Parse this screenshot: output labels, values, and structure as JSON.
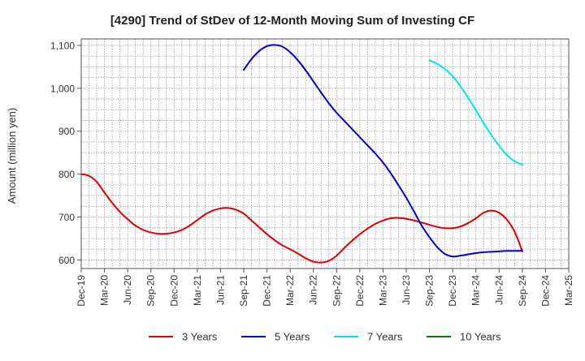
{
  "chart_data": {
    "type": "line",
    "title": "[4290]  Trend of StDev of 12-Month Moving Sum of Investing CF",
    "ylabel": "Amount (million yen)",
    "xlabel": "",
    "ylim": [
      580,
      1115
    ],
    "yticks": [
      600,
      700,
      800,
      900,
      1000,
      1100
    ],
    "ytick_labels": [
      "600",
      "700",
      "800",
      "900",
      "1,000",
      "1,100"
    ],
    "x_range": [
      "Dec-19",
      "Mar-25"
    ],
    "xtick_labels": [
      "Dec-19",
      "Mar-20",
      "Jun-20",
      "Sep-20",
      "Dec-20",
      "Mar-21",
      "Jun-21",
      "Sep-21",
      "Dec-21",
      "Mar-22",
      "Jun-22",
      "Sep-22",
      "Dec-22",
      "Mar-23",
      "Jun-23",
      "Sep-23",
      "Dec-23",
      "Mar-24",
      "Jun-24",
      "Sep-24",
      "Dec-24",
      "Mar-25"
    ],
    "grid": true,
    "legend_position": "bottom",
    "series": [
      {
        "name": "3 Years",
        "color": "#dd0000",
        "x": [
          "Dec-19",
          "Jan-20",
          "Feb-20",
          "Mar-20",
          "Apr-20",
          "May-20",
          "Jun-20",
          "Jul-20",
          "Aug-20",
          "Sep-20",
          "Oct-20",
          "Nov-20",
          "Dec-20",
          "Jan-21",
          "Feb-21",
          "Mar-21",
          "Apr-21",
          "May-21",
          "Jun-21",
          "Jul-21",
          "Aug-21",
          "Sep-21",
          "Oct-21",
          "Nov-21",
          "Dec-21",
          "Jan-22",
          "Feb-22",
          "Mar-22",
          "Apr-22",
          "May-22",
          "Jun-22",
          "Jul-22",
          "Aug-22",
          "Sep-22",
          "Oct-22",
          "Nov-22",
          "Dec-22",
          "Jan-23",
          "Feb-23",
          "Mar-23",
          "Apr-23",
          "May-23",
          "Jun-23",
          "Jul-23",
          "Aug-23",
          "Sep-23",
          "Oct-23",
          "Nov-23",
          "Dec-23",
          "Jan-24",
          "Feb-24",
          "Mar-24",
          "Apr-24",
          "May-24",
          "Jun-24",
          "Jul-24",
          "Aug-24",
          "Sep-24"
        ],
        "values": [
          800,
          796,
          782,
          757,
          733,
          712,
          695,
          680,
          670,
          664,
          661,
          661,
          664,
          670,
          680,
          693,
          706,
          715,
          720,
          721,
          717,
          708,
          692,
          676,
          660,
          646,
          634,
          625,
          615,
          604,
          596,
          594,
          598,
          610,
          628,
          645,
          660,
          673,
          684,
          692,
          697,
          698,
          696,
          692,
          687,
          682,
          677,
          674,
          674,
          678,
          686,
          697,
          710,
          715,
          710,
          694,
          666,
          620
        ]
      },
      {
        "name": "5 Years",
        "color": "#0000cc",
        "x": [
          "Sep-21",
          "Oct-21",
          "Nov-21",
          "Dec-21",
          "Jan-22",
          "Feb-22",
          "Mar-22",
          "Apr-22",
          "May-22",
          "Jun-22",
          "Jul-22",
          "Aug-22",
          "Sep-22",
          "Oct-22",
          "Nov-22",
          "Dec-22",
          "Jan-23",
          "Feb-23",
          "Mar-23",
          "Apr-23",
          "May-23",
          "Jun-23",
          "Jul-23",
          "Aug-23",
          "Sep-23",
          "Oct-23",
          "Nov-23",
          "Dec-23",
          "Jan-24",
          "Feb-24",
          "Mar-24",
          "Apr-24",
          "May-24",
          "Jun-24",
          "Jul-24",
          "Aug-24",
          "Sep-24"
        ],
        "values": [
          1043,
          1068,
          1087,
          1098,
          1101,
          1097,
          1084,
          1065,
          1042,
          1016,
          990,
          965,
          943,
          924,
          905,
          886,
          867,
          848,
          827,
          802,
          774,
          745,
          713,
          680,
          653,
          630,
          614,
          608,
          610,
          613,
          616,
          618,
          619,
          620,
          621,
          621,
          621
        ]
      },
      {
        "name": "7 Years",
        "color": "#00e5ee",
        "x": [
          "Sep-23",
          "Oct-23",
          "Nov-23",
          "Dec-23",
          "Jan-24",
          "Feb-24",
          "Mar-24",
          "Apr-24",
          "May-24",
          "Jun-24",
          "Jul-24",
          "Aug-24",
          "Sep-24"
        ],
        "values": [
          1065,
          1057,
          1045,
          1028,
          1005,
          978,
          949,
          919,
          891,
          866,
          845,
          830,
          822
        ]
      },
      {
        "name": "10 Years",
        "color": "#008000",
        "x": [],
        "values": []
      }
    ]
  }
}
